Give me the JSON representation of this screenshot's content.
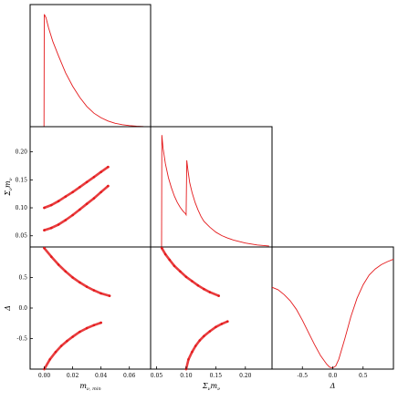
{
  "chart_data": [
    {
      "panel": "m_nu_min marginal (1D histogram)",
      "type": "line",
      "xlim": [
        -0.01,
        0.075
      ],
      "x_ticks": [],
      "y_ticks": [],
      "series": [
        {
          "color": "#e41a1c",
          "x": [
            -0.0002,
            0.0,
            0.0012,
            0.003,
            0.006,
            0.01,
            0.015,
            0.02,
            0.025,
            0.03,
            0.035,
            0.04,
            0.045,
            0.05,
            0.055,
            0.06,
            0.065,
            0.07
          ],
          "y": [
            0.0,
            1.0,
            0.97,
            0.88,
            0.76,
            0.63,
            0.48,
            0.36,
            0.26,
            0.18,
            0.12,
            0.08,
            0.05,
            0.03,
            0.018,
            0.01,
            0.005,
            0.002
          ]
        }
      ]
    },
    {
      "panel": "m_nu_min vs Sigma m_nu (2D samples)",
      "type": "scatter",
      "xlim": [
        -0.01,
        0.075
      ],
      "ylim": [
        0.03,
        0.245
      ],
      "y_ticks": [
        "0.05",
        "0.10",
        "0.15",
        "0.20"
      ],
      "y_tick_values": [
        0.05,
        0.1,
        0.15,
        0.2
      ],
      "ylabel_main": "Σ",
      "ylabel_sub": "ν",
      "ylabel_tail": "m",
      "ylabel_tail_sub": "ν",
      "series": [
        {
          "color": "#e41a1c",
          "x": [
            0.0,
            0.005,
            0.01,
            0.015,
            0.02,
            0.025,
            0.03,
            0.035,
            0.04,
            0.045
          ],
          "y": [
            0.1,
            0.105,
            0.112,
            0.12,
            0.128,
            0.137,
            0.146,
            0.155,
            0.164,
            0.173
          ]
        },
        {
          "color": "#e41a1c",
          "x": [
            0.0,
            0.005,
            0.01,
            0.015,
            0.02,
            0.025,
            0.03,
            0.035,
            0.04,
            0.045
          ],
          "y": [
            0.06,
            0.064,
            0.07,
            0.078,
            0.087,
            0.097,
            0.107,
            0.117,
            0.128,
            0.139
          ]
        }
      ]
    },
    {
      "panel": "Sigma m_nu marginal (1D histogram)",
      "type": "line",
      "xlim": [
        0.04,
        0.245
      ],
      "series": [
        {
          "color": "#e41a1c",
          "x": [
            0.0585,
            0.059,
            0.061,
            0.065,
            0.07,
            0.075,
            0.08,
            0.085,
            0.09,
            0.095,
            0.099,
            0.1,
            0.101,
            0.103,
            0.106,
            0.11,
            0.115,
            0.12,
            0.125,
            0.13,
            0.14,
            0.15,
            0.16,
            0.17,
            0.18,
            0.2,
            0.22,
            0.24
          ],
          "y": [
            0.0,
            0.226,
            0.2,
            0.168,
            0.14,
            0.12,
            0.103,
            0.09,
            0.08,
            0.072,
            0.067,
            0.065,
            0.175,
            0.155,
            0.13,
            0.11,
            0.09,
            0.075,
            0.062,
            0.052,
            0.04,
            0.03,
            0.023,
            0.018,
            0.014,
            0.008,
            0.004,
            0.002
          ]
        }
      ]
    },
    {
      "panel": "m_nu_min vs Delta (2D samples)",
      "type": "scatter",
      "xlim": [
        -0.01,
        0.075
      ],
      "ylim": [
        -1.0,
        1.0
      ],
      "x_ticks": [
        "0.00",
        "0.02",
        "0.04",
        "0.06"
      ],
      "x_tick_values": [
        0.0,
        0.02,
        0.04,
        0.06
      ],
      "y_ticks": [
        "-0.5",
        "0.0",
        "0.5"
      ],
      "y_tick_values": [
        -0.5,
        0.0,
        0.5
      ],
      "xlabel_main": "m",
      "xlabel_sub": "ν, min",
      "ylabel": "Δ",
      "series": [
        {
          "color": "#e41a1c",
          "x": [
            0.0,
            0.005,
            0.01,
            0.015,
            0.02,
            0.025,
            0.03,
            0.035,
            0.04,
            0.046
          ],
          "y": [
            0.98,
            0.84,
            0.71,
            0.6,
            0.5,
            0.42,
            0.35,
            0.29,
            0.24,
            0.2
          ]
        },
        {
          "color": "#e41a1c",
          "x": [
            0.0,
            0.004,
            0.008,
            0.012,
            0.016,
            0.02,
            0.025,
            0.03,
            0.035,
            0.04
          ],
          "y": [
            -1.0,
            -0.84,
            -0.72,
            -0.62,
            -0.54,
            -0.47,
            -0.39,
            -0.33,
            -0.28,
            -0.24
          ]
        }
      ]
    },
    {
      "panel": "Sigma m_nu vs Delta (2D samples)",
      "type": "scatter",
      "xlim": [
        0.04,
        0.245
      ],
      "ylim": [
        -1.0,
        1.0
      ],
      "x_ticks": [
        "0.05",
        "0.10",
        "0.15",
        "0.20"
      ],
      "x_tick_values": [
        0.05,
        0.1,
        0.15,
        0.2
      ],
      "xlabel_main": "Σ",
      "xlabel_sub": "ν",
      "xlabel_tail": "m",
      "xlabel_tail_sub": "ν",
      "series": [
        {
          "color": "#e41a1c",
          "x": [
            0.059,
            0.065,
            0.072,
            0.08,
            0.09,
            0.1,
            0.11,
            0.12,
            0.13,
            0.14,
            0.155
          ],
          "y": [
            0.98,
            0.88,
            0.79,
            0.69,
            0.6,
            0.51,
            0.44,
            0.37,
            0.31,
            0.26,
            0.2
          ]
        },
        {
          "color": "#e41a1c",
          "x": [
            0.1,
            0.104,
            0.11,
            0.116,
            0.123,
            0.13,
            0.14,
            0.15,
            0.16,
            0.17
          ],
          "y": [
            -1.0,
            -0.84,
            -0.72,
            -0.62,
            -0.53,
            -0.46,
            -0.38,
            -0.31,
            -0.26,
            -0.22
          ]
        }
      ]
    },
    {
      "panel": "Delta marginal (1D histogram)",
      "type": "line",
      "xlim": [
        -1.0,
        1.0
      ],
      "x_ticks": [
        "-0.5",
        "0.0",
        "0.5"
      ],
      "x_tick_values": [
        -0.5,
        0.0,
        0.5
      ],
      "xlabel": "Δ",
      "series": [
        {
          "color": "#e41a1c",
          "x": [
            -1.0,
            -0.9,
            -0.8,
            -0.7,
            -0.6,
            -0.5,
            -0.4,
            -0.3,
            -0.2,
            -0.1,
            -0.05,
            0.0,
            0.05,
            0.1,
            0.2,
            0.3,
            0.4,
            0.5,
            0.6,
            0.7,
            0.8,
            0.9,
            1.0
          ],
          "y": [
            0.67,
            0.65,
            0.61,
            0.56,
            0.49,
            0.4,
            0.3,
            0.2,
            0.11,
            0.04,
            0.015,
            0.01,
            0.025,
            0.08,
            0.25,
            0.43,
            0.58,
            0.69,
            0.77,
            0.82,
            0.855,
            0.88,
            0.9
          ]
        }
      ]
    }
  ]
}
